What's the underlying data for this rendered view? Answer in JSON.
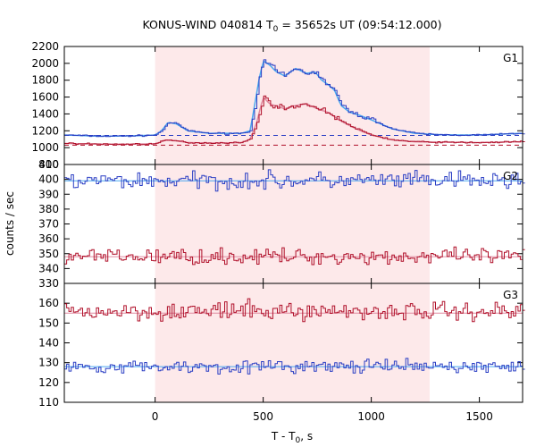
{
  "chart_data": {
    "type": "line",
    "title": "KONUS-WIND 040814 T",
    "title_sub": "0",
    "title_rest": " = 35652s UT (09:54:12.000)",
    "xlabel": "T - T",
    "xlabel_sub": "0",
    "xlabel_rest": ", s",
    "ylabel": "counts / sec",
    "xlim": [
      -420,
      1700
    ],
    "x_ticks": [
      0,
      500,
      1000,
      1500
    ],
    "shaded_interval": [
      0,
      1270
    ],
    "colors": {
      "blue": "#2b3fc4",
      "light_blue": "#4aa8f0",
      "red": "#b0102a",
      "pink": "#e08aa0",
      "shade": "#fde9ea"
    },
    "panels": [
      {
        "label": "G1",
        "ylim": [
          800,
          2200
        ],
        "y_ticks": [
          800,
          1000,
          1200,
          1400,
          1600,
          1800,
          2000,
          2200
        ],
        "series": [
          {
            "color_key": "blue",
            "background": 1145,
            "points": [
              [
                -420,
                1150
              ],
              [
                -250,
                1135
              ],
              [
                -100,
                1140
              ],
              [
                0,
                1150
              ],
              [
                30,
                1200
              ],
              [
                60,
                1300
              ],
              [
                100,
                1280
              ],
              [
                150,
                1200
              ],
              [
                250,
                1170
              ],
              [
                400,
                1170
              ],
              [
                440,
                1200
              ],
              [
                460,
                1500
              ],
              [
                480,
                1800
              ],
              [
                500,
                2030
              ],
              [
                530,
                1980
              ],
              [
                560,
                1900
              ],
              [
                600,
                1850
              ],
              [
                650,
                1940
              ],
              [
                700,
                1880
              ],
              [
                740,
                1900
              ],
              [
                770,
                1800
              ],
              [
                800,
                1750
              ],
              [
                830,
                1680
              ],
              [
                860,
                1500
              ],
              [
                900,
                1420
              ],
              [
                950,
                1380
              ],
              [
                1000,
                1330
              ],
              [
                1100,
                1220
              ],
              [
                1200,
                1170
              ],
              [
                1300,
                1155
              ],
              [
                1400,
                1150
              ],
              [
                1500,
                1150
              ],
              [
                1600,
                1160
              ],
              [
                1700,
                1170
              ]
            ]
          },
          {
            "color_key": "red",
            "background": 1030,
            "points": [
              [
                -420,
                1050
              ],
              [
                -200,
                1040
              ],
              [
                0,
                1045
              ],
              [
                50,
                1090
              ],
              [
                100,
                1080
              ],
              [
                150,
                1060
              ],
              [
                250,
                1055
              ],
              [
                400,
                1060
              ],
              [
                440,
                1100
              ],
              [
                470,
                1300
              ],
              [
                500,
                1600
              ],
              [
                530,
                1520
              ],
              [
                600,
                1460
              ],
              [
                650,
                1500
              ],
              [
                700,
                1520
              ],
              [
                750,
                1460
              ],
              [
                800,
                1420
              ],
              [
                850,
                1330
              ],
              [
                900,
                1260
              ],
              [
                950,
                1200
              ],
              [
                1000,
                1150
              ],
              [
                1100,
                1090
              ],
              [
                1200,
                1070
              ],
              [
                1300,
                1065
              ],
              [
                1500,
                1060
              ],
              [
                1700,
                1070
              ]
            ]
          }
        ]
      },
      {
        "label": "G2",
        "ylim": [
          330,
          410
        ],
        "y_ticks": [
          330,
          340,
          350,
          360,
          370,
          380,
          390,
          400,
          410
        ],
        "series": [
          {
            "color_key": "blue",
            "background": 399,
            "level": 399,
            "noise": 5
          },
          {
            "color_key": "red",
            "background": 348,
            "level": 348,
            "noise": 4.5
          }
        ]
      },
      {
        "label": "G3",
        "ylim": [
          110,
          170
        ],
        "y_ticks": [
          110,
          120,
          130,
          140,
          150,
          160
        ],
        "series": [
          {
            "color_key": "red",
            "background": 155,
            "level": 156,
            "noise": 4
          },
          {
            "color_key": "blue",
            "background": 128,
            "level": 128,
            "noise": 2.8
          }
        ]
      }
    ]
  }
}
